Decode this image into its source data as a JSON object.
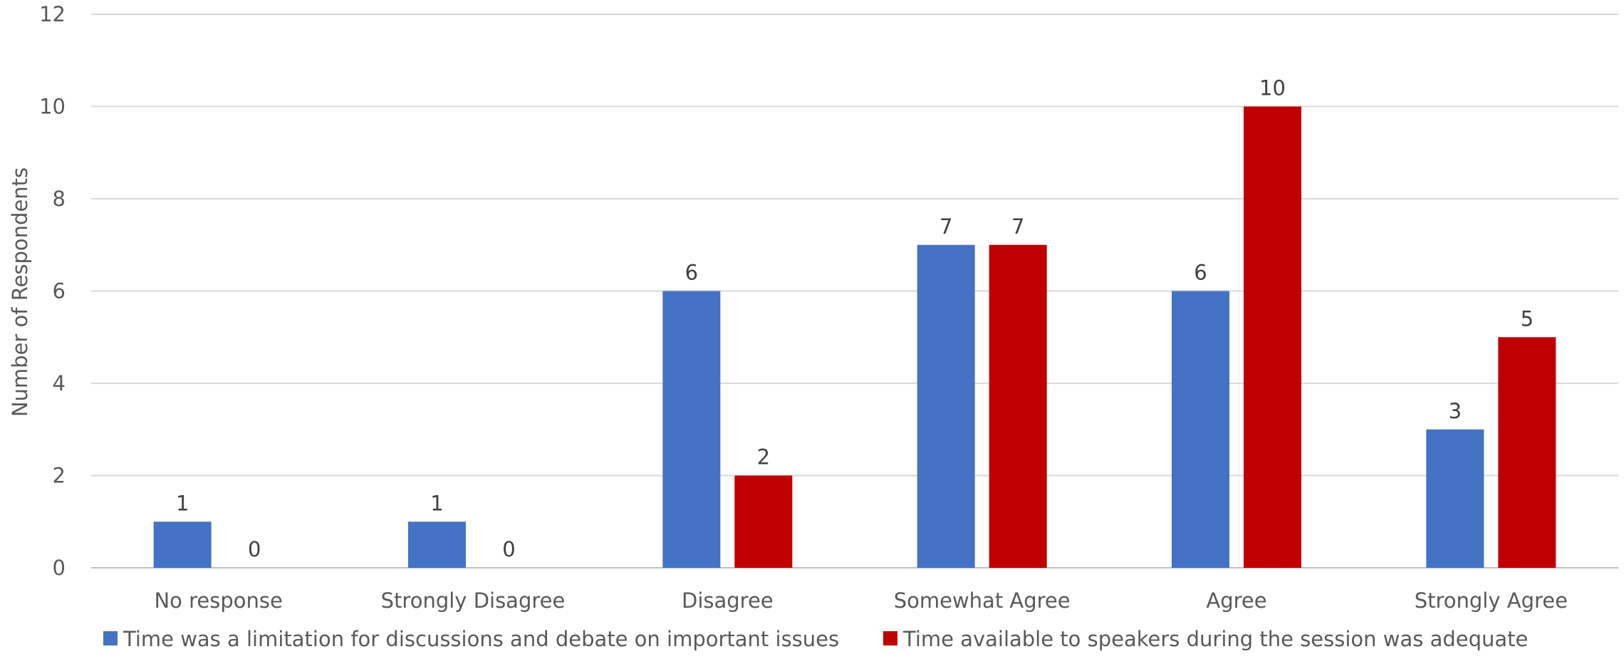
{
  "chart_data": {
    "type": "bar",
    "title": "",
    "xlabel": "",
    "ylabel": "Number of Respondents",
    "ylim": [
      0,
      12
    ],
    "yticks": [
      0,
      2,
      4,
      6,
      8,
      10,
      12
    ],
    "grid": true,
    "legend_position": "bottom",
    "categories": [
      "No response",
      "Strongly Disagree",
      "Disagree",
      "Somewhat Agree",
      "Agree",
      "Strongly Agree"
    ],
    "series": [
      {
        "name": "Time was a limitation for discussions and debate on important issues",
        "color": "#4472C4",
        "values": [
          1,
          1,
          6,
          7,
          6,
          3
        ]
      },
      {
        "name": "Time available to speakers during the session was adequate",
        "color": "#C00000",
        "values": [
          0,
          0,
          2,
          7,
          10,
          5
        ]
      }
    ]
  }
}
